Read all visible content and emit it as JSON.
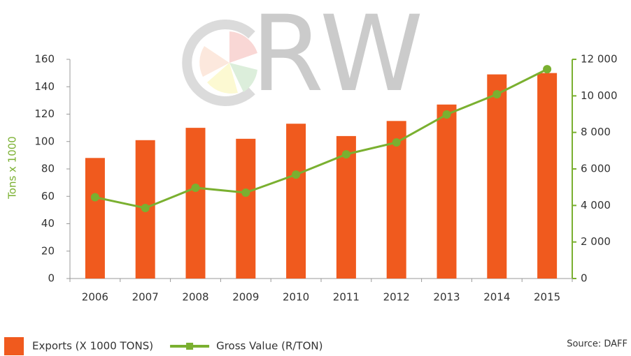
{
  "chart_data": {
    "type": "bar",
    "watermark": "RW",
    "ylabel": "Tons x 1000",
    "source": "Source: DAFF",
    "categories": [
      "2006",
      "2007",
      "2008",
      "2009",
      "2010",
      "2011",
      "2012",
      "2013",
      "2014",
      "2015"
    ],
    "series": [
      {
        "name": "Exports (X 1000 TONS)",
        "type": "bar",
        "axis": "y",
        "color": "#f05a1e",
        "values": [
          88,
          101,
          110,
          102,
          113,
          104,
          115,
          127,
          149,
          150
        ]
      },
      {
        "name": "Gross Value (R/TON)",
        "type": "line",
        "axis": "y2",
        "color": "#7ab030",
        "values": [
          4450,
          3860,
          4970,
          4700,
          5690,
          6800,
          7450,
          8980,
          10090,
          11460
        ]
      }
    ],
    "ylim": [
      0,
      160
    ],
    "yticks": [
      0,
      20,
      40,
      60,
      80,
      100,
      120,
      140,
      160
    ],
    "y2lim": [
      0,
      12000
    ],
    "y2ticks": [
      0,
      {
        "value": 2000,
        "label": "2 000"
      },
      {
        "value": 4000,
        "label": "4 000"
      },
      {
        "value": 6000,
        "label": "6 000"
      },
      {
        "value": 8000,
        "label": "8 000"
      },
      {
        "value": 10000,
        "label": "10 000"
      },
      {
        "value": 12000,
        "label": "12 000"
      }
    ],
    "legend": "bottom-left"
  }
}
